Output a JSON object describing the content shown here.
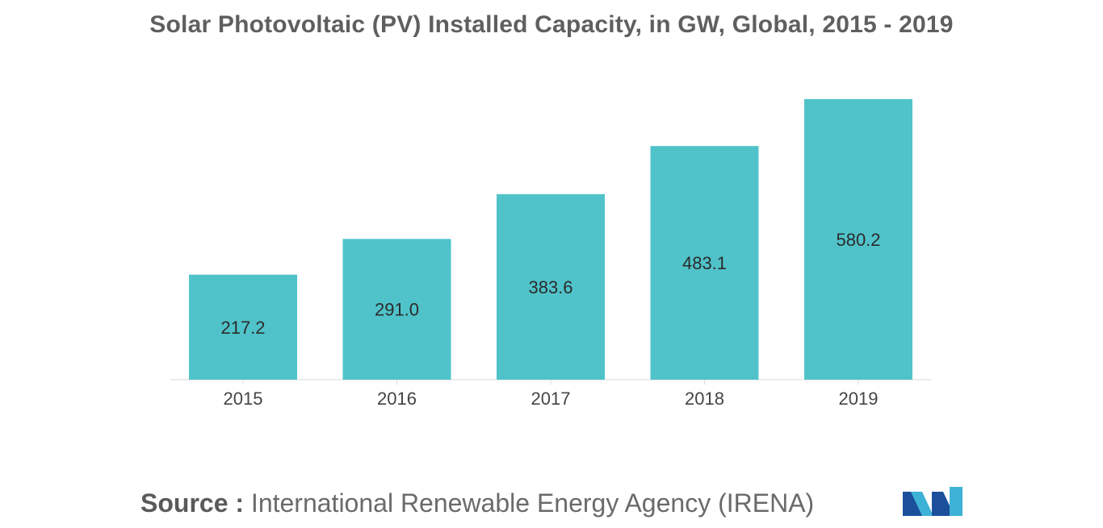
{
  "chart_data": {
    "type": "bar",
    "title": "Solar Photovoltaic (PV) Installed Capacity, in GW, Global, 2015 - 2019",
    "categories": [
      "2015",
      "2016",
      "2017",
      "2018",
      "2019"
    ],
    "values": [
      217.2,
      291.0,
      383.6,
      483.1,
      580.2
    ],
    "value_labels": [
      "217.2",
      "291.0",
      "383.6",
      "483.1",
      "580.2"
    ],
    "xlabel": "",
    "ylabel": "",
    "ylim": [
      0,
      600
    ],
    "grid": false,
    "legend": "none",
    "bar_color": "#50c3ca"
  },
  "source": {
    "label": "Source :",
    "text": "International Renewable Energy Agency (IRENA)"
  },
  "logo": {
    "name": "mordor-intelligence-logo",
    "colors": [
      "#1b4f9c",
      "#3db2d6"
    ]
  }
}
